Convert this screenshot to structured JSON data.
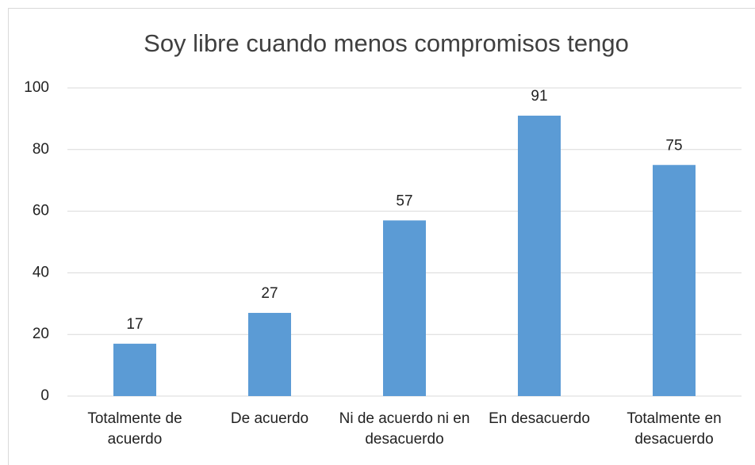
{
  "chart_data": {
    "type": "bar",
    "title": "Soy libre cuando menos compromisos tengo",
    "categories": [
      "Totalmente de acuerdo",
      "De acuerdo",
      "Ni de acuerdo ni en desacuerdo",
      "En desacuerdo",
      "Totalmente en desacuerdo"
    ],
    "values": [
      17,
      27,
      57,
      91,
      75
    ],
    "color": "#5b9bd5",
    "ylim": [
      0,
      100
    ],
    "yticks": [
      0,
      20,
      40,
      60,
      80,
      100
    ],
    "grid": true
  }
}
